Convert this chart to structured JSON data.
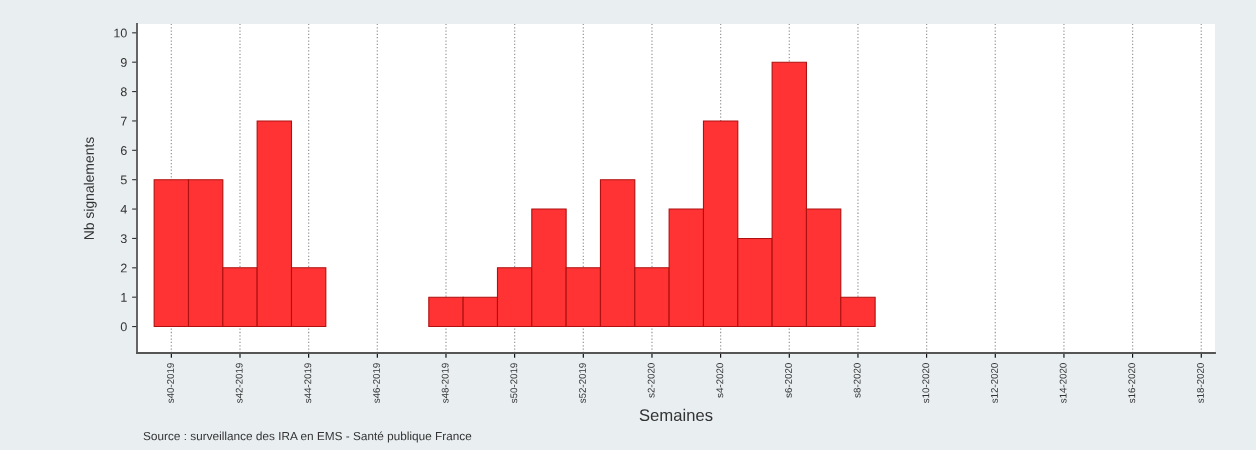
{
  "chart_data": {
    "type": "bar",
    "xlabel": "Semaines",
    "ylabel": "Nb signalements",
    "categories": [
      "s40-2019",
      null,
      "s42-2019",
      null,
      "s44-2019",
      null,
      "s46-2019",
      null,
      "s48-2019",
      null,
      "s50-2019",
      null,
      "s52-2019",
      null,
      "s2-2020",
      null,
      "s4-2020",
      null,
      "s6-2020",
      null,
      "s8-2020",
      null,
      "s10-2020",
      null,
      "s12-2020",
      null,
      "s14-2020",
      null,
      "s16-2020",
      null,
      "s18-2020"
    ],
    "values": [
      5,
      5,
      2,
      7,
      2,
      null,
      null,
      null,
      1,
      1,
      2,
      4,
      2,
      5,
      2,
      4,
      7,
      3,
      9,
      4,
      1,
      null,
      null,
      null,
      null,
      null,
      null,
      null,
      null,
      null,
      null
    ],
    "color": "#ff3333",
    "ylim": [
      -0.9,
      10.3
    ],
    "yticks": [
      0,
      1,
      2,
      3,
      4,
      5,
      6,
      7,
      8,
      9,
      10
    ],
    "grid": "x",
    "annotations": [
      "Source : surveillance des IRA en EMS - Santé publique France"
    ]
  }
}
